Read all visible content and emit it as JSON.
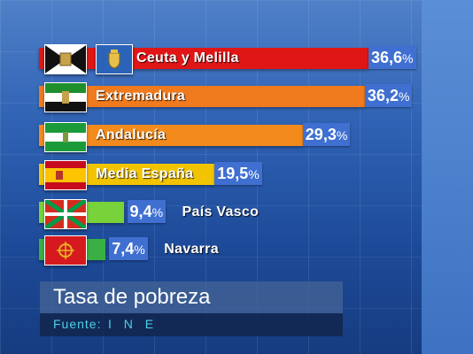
{
  "chart_data": {
    "type": "bar",
    "orientation": "horizontal",
    "title": "Tasa de pobreza",
    "source": {
      "label": "Fuente:",
      "value": "I N E"
    },
    "unit": "%",
    "categories": [
      "Ceuta y Melilla",
      "Extremadura",
      "Andalucía",
      "Media España",
      "País Vasco",
      "Navarra"
    ],
    "value_labels": [
      "36,6",
      "36,2",
      "29,3",
      "19,5",
      "9,4",
      "7,4"
    ],
    "values": [
      36.6,
      36.2,
      29.3,
      19.5,
      9.4,
      7.4
    ],
    "bar_colors": [
      "#e01616",
      "#f07a1e",
      "#f28a1c",
      "#f2c400",
      "#78d23a",
      "#3ab044"
    ],
    "label_position": [
      "inside",
      "inside",
      "inside",
      "inside",
      "after",
      "after"
    ],
    "flags": [
      "ceuta-flag-icon",
      "extremadura-flag-icon",
      "andalucia-flag-icon",
      "spain-flag-icon",
      "ikurrina-flag-icon",
      "navarra-flag-icon"
    ],
    "melilla_emblem": "melilla-emblem-icon",
    "xlim": [
      0,
      36.6
    ],
    "grid": false,
    "legend": "none"
  }
}
